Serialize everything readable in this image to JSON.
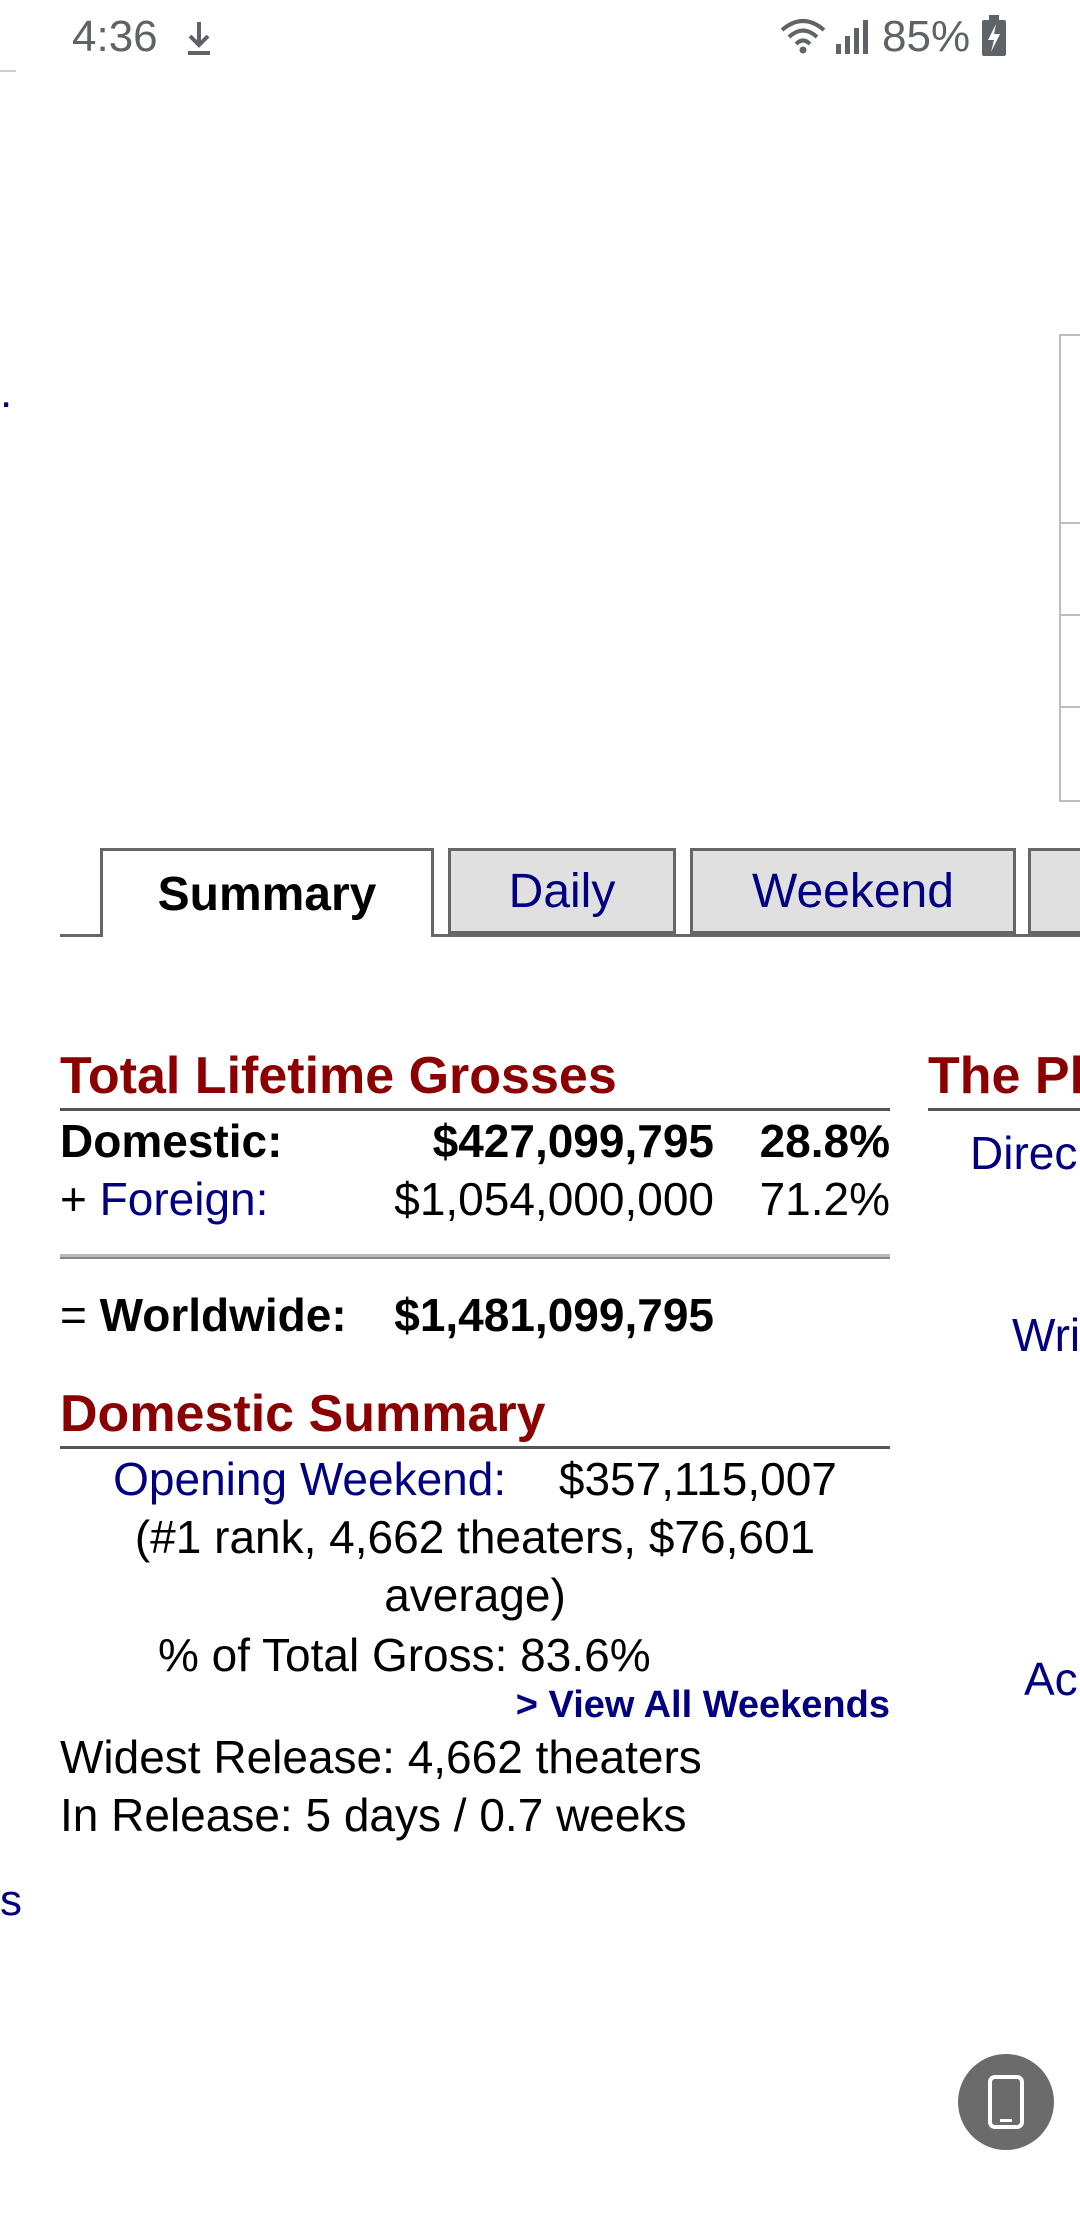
{
  "status_bar": {
    "time": "4:36",
    "battery": "85%",
    "icons": [
      "download-icon",
      "wifi-icon",
      "signal-icon",
      "battery-charging-icon"
    ]
  },
  "edge_fragments": {
    "dot": ".",
    "s": "s"
  },
  "tabs": [
    {
      "label": "Summary",
      "active": true
    },
    {
      "label": "Daily",
      "active": false
    },
    {
      "label": "Weekend",
      "active": false
    }
  ],
  "lifetime": {
    "heading": "Total Lifetime Grosses",
    "domestic_label": "Domestic:",
    "domestic_amount": "$427,099,795",
    "domestic_pct": "28.8%",
    "foreign_prefix": "+ ",
    "foreign_label": "Foreign:",
    "foreign_amount": "$1,054,000,000",
    "foreign_pct": "71.2%",
    "worldwide_prefix": "= ",
    "worldwide_label": "Worldwide:",
    "worldwide_amount": "$1,481,099,795"
  },
  "domestic_summary": {
    "heading": "Domestic Summary",
    "opening_label": "Opening Weekend:",
    "opening_amount": "$357,115,007",
    "opening_detail_1": "(#1 rank, 4,662 theaters, $76,601",
    "opening_detail_2": "average)",
    "pct_total_gross": "% of Total Gross: 83.6%",
    "view_all": "> View All Weekends",
    "widest_release": "Widest Release: 4,662 theaters",
    "in_release": "In Release: 5 days / 0.7 weeks"
  },
  "right_column": {
    "heading_fragment": "The Pl",
    "director_fragment": "Direc",
    "writer_fragment": "Wri",
    "actor_fragment": "Ac"
  },
  "colors": {
    "heading_red": "#8b0000",
    "link_navy": "#000080",
    "tab_inactive_bg": "#e0e0e0"
  }
}
